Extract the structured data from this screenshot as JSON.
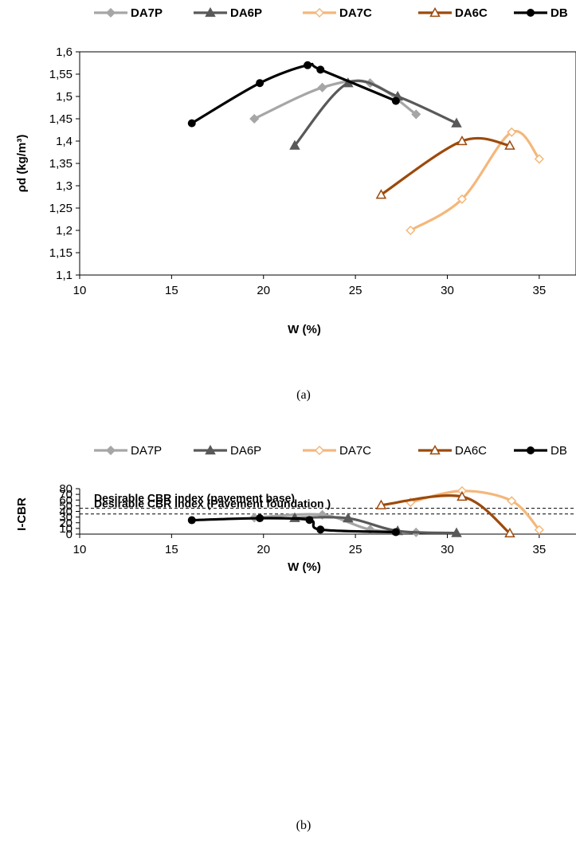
{
  "chart_data": [
    {
      "type": "line",
      "caption": "(a)",
      "xlabel": "W (%)",
      "ylabel": "ρd (kg/m³)",
      "xlim": [
        10,
        37
      ],
      "ylim": [
        1.1,
        1.6
      ],
      "x_ticks": [
        10,
        15,
        20,
        25,
        30,
        35
      ],
      "x_tick_labels": [
        "10",
        "15",
        "20",
        "25",
        "30",
        "35"
      ],
      "y_ticks": [
        1.1,
        1.15,
        1.2,
        1.25,
        1.3,
        1.35,
        1.4,
        1.45,
        1.5,
        1.55,
        1.6
      ],
      "y_tick_labels": [
        "1,1",
        "1,15",
        "1,2",
        "1,25",
        "1,3",
        "1,35",
        "1,4",
        "1,45",
        "1,5",
        "1,55",
        "1,6"
      ],
      "legend_position": "top",
      "legend_bold": true,
      "series": [
        {
          "name": "DA7P",
          "color": "#a6a6a6",
          "marker": "diamond-filled",
          "x": [
            19.5,
            23.2,
            25.8,
            28.3
          ],
          "y": [
            1.45,
            1.52,
            1.53,
            1.46
          ]
        },
        {
          "name": "DA6P",
          "color": "#595959",
          "marker": "triangle-filled",
          "x": [
            21.7,
            24.6,
            27.3,
            30.5
          ],
          "y": [
            1.39,
            1.53,
            1.5,
            1.44
          ]
        },
        {
          "name": "DA7C",
          "color": "#f4b77a",
          "marker": "diamond-open",
          "x": [
            28.0,
            30.8,
            33.5,
            35.0
          ],
          "y": [
            1.2,
            1.27,
            1.42,
            1.36
          ]
        },
        {
          "name": "DA6C",
          "color": "#9c4a0c",
          "marker": "triangle-open",
          "x": [
            26.4,
            30.8,
            33.4
          ],
          "y": [
            1.28,
            1.4,
            1.39
          ]
        },
        {
          "name": "DB",
          "color": "#000000",
          "marker": "circle-filled",
          "x": [
            16.1,
            19.8,
            22.4,
            23.1,
            27.2
          ],
          "y": [
            1.44,
            1.53,
            1.57,
            1.56,
            1.49
          ]
        }
      ]
    },
    {
      "type": "line",
      "caption": "(b)",
      "xlabel": "W (%)",
      "ylabel": "I-CBR",
      "xlim": [
        10,
        37
      ],
      "ylim": [
        0,
        80
      ],
      "x_ticks": [
        10,
        15,
        20,
        25,
        30,
        35
      ],
      "x_tick_labels": [
        "10",
        "15",
        "20",
        "25",
        "30",
        "35"
      ],
      "y_ticks": [
        0,
        10,
        20,
        30,
        40,
        50,
        60,
        70,
        80
      ],
      "y_tick_labels": [
        "0",
        "10",
        "20",
        "30",
        "40",
        "50",
        "60",
        "70",
        "80"
      ],
      "legend_position": "top",
      "legend_bold": false,
      "reference_lines": [
        {
          "label": "Desirable CBR index (pavement base)",
          "y": 45.5
        },
        {
          "label": "Desirable CBR index (Pavement foundation )",
          "y": 35.5
        }
      ],
      "series": [
        {
          "name": "DA7P",
          "color": "#a6a6a6",
          "marker": "diamond-filled",
          "x": [
            19.5,
            23.2,
            25.8,
            28.3
          ],
          "y": [
            29,
            34,
            8,
            3
          ]
        },
        {
          "name": "DA6P",
          "color": "#595959",
          "marker": "triangle-filled",
          "x": [
            21.7,
            24.6,
            27.3,
            30.5
          ],
          "y": [
            28.5,
            28,
            5.5,
            2
          ]
        },
        {
          "name": "DA7C",
          "color": "#f4b77a",
          "marker": "diamond-open",
          "x": [
            28.0,
            30.8,
            33.5,
            35.0
          ],
          "y": [
            56,
            76,
            58.5,
            7.5
          ]
        },
        {
          "name": "DA6C",
          "color": "#9c4a0c",
          "marker": "triangle-open",
          "x": [
            26.4,
            30.8,
            33.4
          ],
          "y": [
            51,
            66,
            1.5
          ]
        },
        {
          "name": "DB",
          "color": "#000000",
          "marker": "circle-filled",
          "x": [
            16.1,
            19.8,
            22.5,
            23.1,
            27.2
          ],
          "y": [
            24.5,
            28,
            25,
            8,
            3.5
          ]
        }
      ]
    }
  ]
}
